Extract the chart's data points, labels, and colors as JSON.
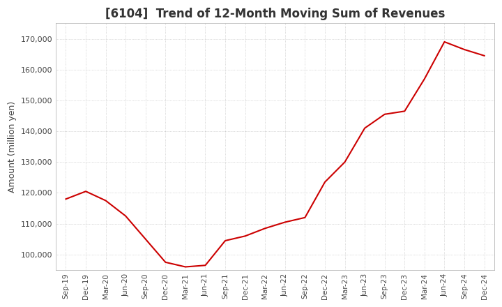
{
  "title": "[6104]  Trend of 12-Month Moving Sum of Revenues",
  "ylabel": "Amount (million yen)",
  "ylim": [
    95000,
    175000
  ],
  "yticks": [
    100000,
    110000,
    120000,
    130000,
    140000,
    150000,
    160000,
    170000
  ],
  "line_color": "#cc0000",
  "background_color": "#ffffff",
  "plot_bg_color": "#ffffff",
  "grid_color": "#aaaaaa",
  "x_labels": [
    "Sep-19",
    "Dec-19",
    "Mar-20",
    "Jun-20",
    "Sep-20",
    "Dec-20",
    "Mar-21",
    "Jun-21",
    "Sep-21",
    "Dec-21",
    "Mar-22",
    "Jun-22",
    "Sep-22",
    "Dec-22",
    "Mar-23",
    "Jun-23",
    "Sep-23",
    "Dec-23",
    "Mar-24",
    "Jun-24",
    "Sep-24",
    "Dec-24"
  ],
  "values": [
    118000,
    120500,
    117500,
    112500,
    105000,
    97500,
    96000,
    96500,
    104500,
    106000,
    108500,
    110500,
    112000,
    123500,
    130000,
    141000,
    145500,
    146500,
    157000,
    169000,
    166500,
    164500
  ],
  "title_fontsize": 12,
  "ylabel_fontsize": 9,
  "tick_fontsize": 8,
  "xtick_fontsize": 7.5
}
